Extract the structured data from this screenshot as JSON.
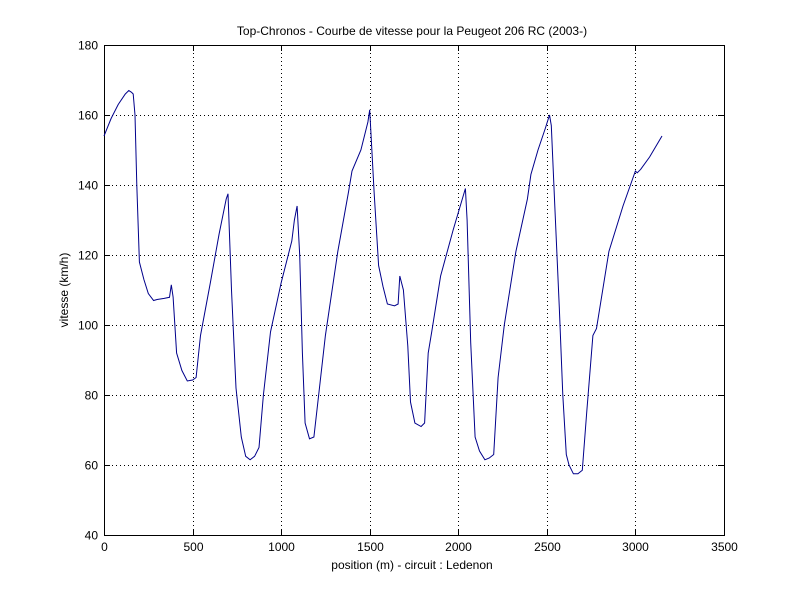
{
  "chart_data": {
    "type": "line",
    "title": "Top-Chronos - Courbe de vitesse pour la Peugeot 206 RC (2003-)",
    "xlabel": "position (m) - circuit : Ledenon",
    "ylabel": "vitesse (km/h)",
    "xlim": [
      0,
      3500
    ],
    "ylim": [
      40,
      180
    ],
    "xticks": [
      0,
      500,
      1000,
      1500,
      2000,
      2500,
      3000,
      3500
    ],
    "yticks": [
      40,
      60,
      80,
      100,
      120,
      140,
      160,
      180
    ],
    "xtick_labels": [
      "0",
      "500",
      "1000",
      "1500",
      "2000",
      "2500",
      "3000",
      "3500"
    ],
    "ytick_labels": [
      "40",
      "60",
      "80",
      "100",
      "120",
      "140",
      "160",
      "180"
    ],
    "grid": true,
    "line_color": "#00008b",
    "series": [
      {
        "x": [
          0,
          40,
          80,
          120,
          140,
          155,
          165,
          175,
          185,
          200,
          225,
          250,
          280,
          300,
          340,
          370,
          380,
          390,
          410,
          440,
          470,
          500,
          520,
          545,
          600,
          650,
          690,
          700,
          720,
          745,
          775,
          800,
          825,
          850,
          875,
          900,
          940,
          1000,
          1060,
          1075,
          1090,
          1105,
          1120,
          1135,
          1160,
          1185,
          1250,
          1320,
          1380,
          1400,
          1450,
          1490,
          1500,
          1525,
          1550,
          1575,
          1600,
          1640,
          1660,
          1670,
          1690,
          1715,
          1730,
          1755,
          1790,
          1810,
          1830,
          1850,
          1900,
          1970,
          2040,
          2050,
          2070,
          2095,
          2120,
          2150,
          2175,
          2200,
          2225,
          2260,
          2325,
          2390,
          2410,
          2450,
          2490,
          2515,
          2525,
          2545,
          2570,
          2590,
          2610,
          2625,
          2650,
          2675,
          2700,
          2725,
          2760,
          2780,
          2850,
          2930,
          3000,
          3010,
          3030,
          3080,
          3150
        ],
        "y": [
          154,
          159,
          163,
          166,
          167,
          166.5,
          166,
          160,
          140,
          118,
          113,
          109,
          107,
          107.3,
          107.6,
          107.9,
          111.5,
          108,
          92,
          87,
          84,
          84.3,
          85,
          97,
          112,
          126,
          136,
          137.5,
          110,
          82,
          68,
          62.5,
          61.5,
          62.5,
          65,
          80,
          98,
          112,
          124,
          130,
          134,
          120,
          92,
          72,
          67.5,
          68,
          97,
          121,
          138,
          144,
          150,
          158,
          161.5,
          138,
          117,
          111,
          106,
          105.5,
          106,
          114,
          110,
          94,
          78,
          72,
          71,
          72,
          92,
          98,
          114,
          127,
          139,
          130,
          95,
          68,
          64,
          61.5,
          62,
          63,
          85,
          100,
          121,
          136,
          143,
          150,
          156,
          160,
          157,
          134,
          105,
          80,
          63,
          60,
          57.5,
          57.5,
          58.5,
          75,
          97,
          99,
          121,
          134,
          144,
          143.5,
          144.5,
          148,
          154
        ]
      }
    ]
  }
}
